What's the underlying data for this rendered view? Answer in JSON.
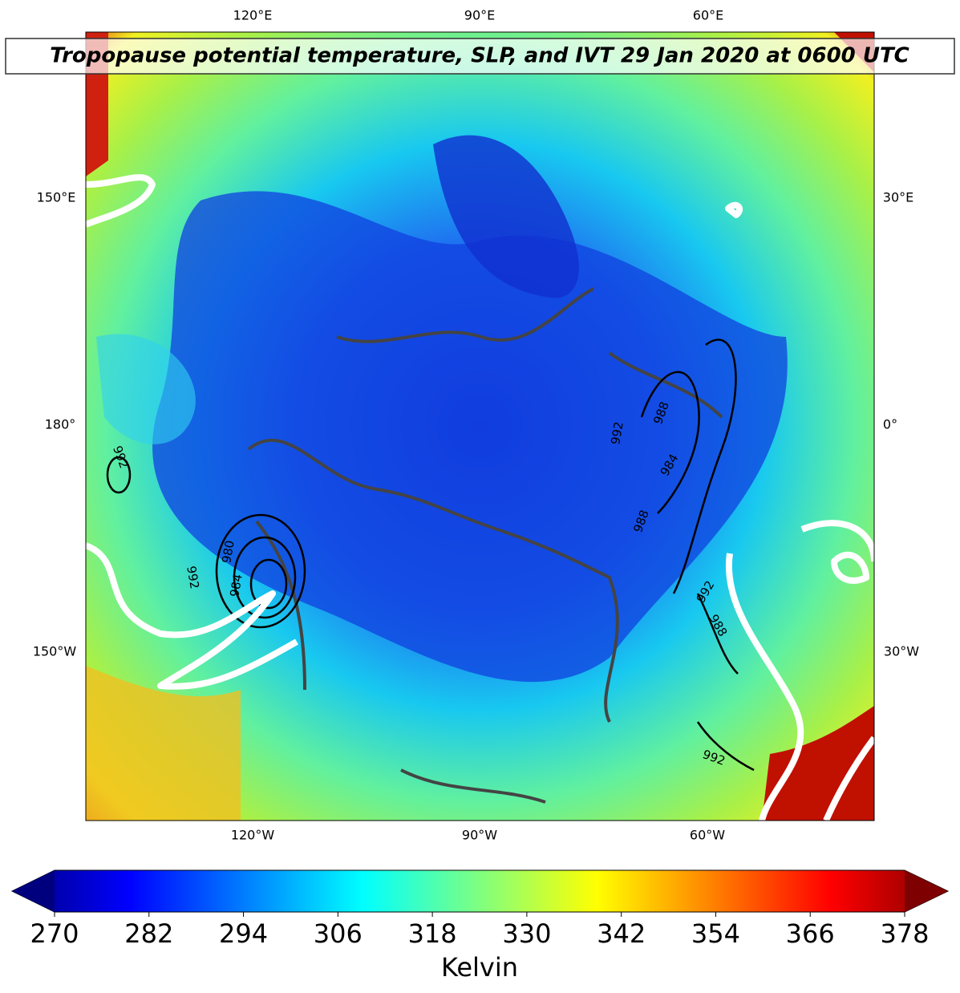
{
  "title": "Tropopause potential temperature, SLP, and IVT 29 Jan 2020 at 0600 UTC",
  "longitude_labels": {
    "top": [
      "120°E",
      "90°E",
      "60°E"
    ],
    "left": [
      "150°E",
      "180°",
      "150°W"
    ],
    "right": [
      "30°E",
      "0°",
      "30°W"
    ],
    "bottom": [
      "120°W",
      "90°W",
      "60°W"
    ]
  },
  "slp_contour_labels": [
    "992",
    "992",
    "988",
    "984",
    "988",
    "980",
    "992",
    "984",
    "992",
    "988",
    "992"
  ],
  "colorbar": {
    "label": "Kelvin",
    "ticks": [
      270,
      282,
      294,
      306,
      318,
      330,
      342,
      354,
      366,
      378
    ]
  }
}
